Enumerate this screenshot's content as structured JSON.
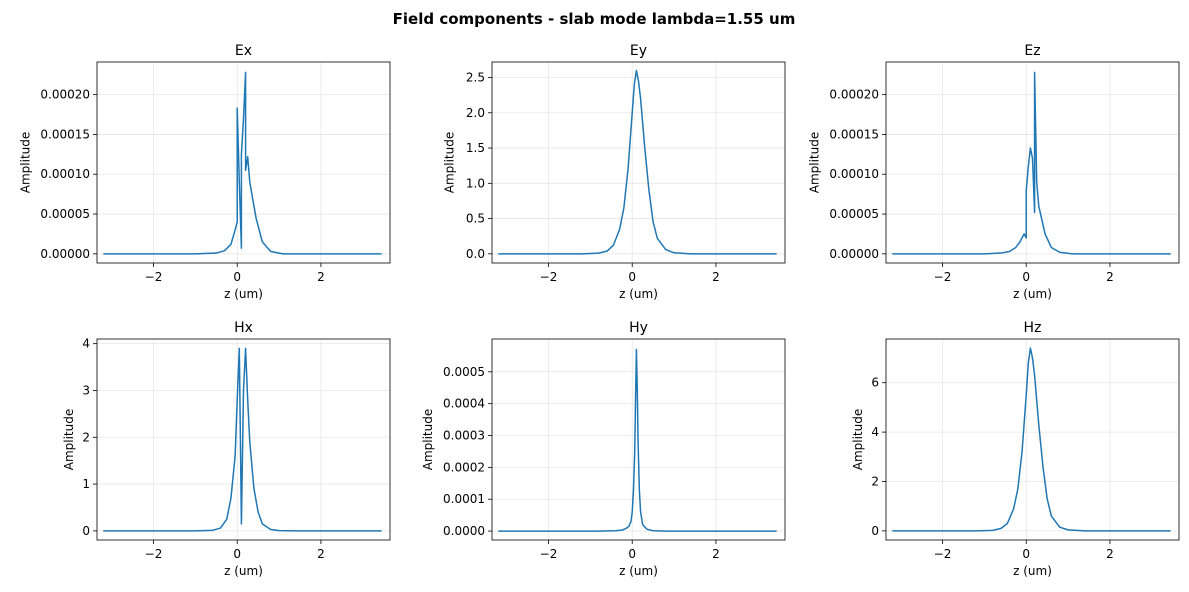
{
  "figure": {
    "title": "Field components - slab mode  lambda=1.55 um"
  },
  "colors": {
    "series": "#1f77b4"
  },
  "chart_data": [
    {
      "type": "line",
      "title": "Ex",
      "xlabel": "z (um)",
      "ylabel": "Amplitude",
      "xlim": [
        -3.35,
        3.65
      ],
      "ylim": [
        -1.15e-05,
        0.000241
      ],
      "xticks": [
        {
          "v": -2,
          "label": "−2"
        },
        {
          "v": 0,
          "label": "0"
        },
        {
          "v": 2,
          "label": "2"
        }
      ],
      "yticks": [
        {
          "v": 0,
          "label": "0.00000"
        },
        {
          "v": 5e-05,
          "label": "0.00005"
        },
        {
          "v": 0.0001,
          "label": "0.00010"
        },
        {
          "v": 0.00015,
          "label": "0.00015"
        },
        {
          "v": 0.0002,
          "label": "0.00020"
        }
      ],
      "grid": true,
      "series": [
        {
          "x": [
            -3.2,
            -1.0,
            -0.5,
            -0.3,
            -0.15,
            -0.05,
            0.0,
            0.0,
            0.05,
            0.1,
            0.1,
            0.15,
            0.2,
            0.2,
            0.25,
            0.3,
            0.45,
            0.6,
            0.8,
            1.1,
            3.45
          ],
          "y": [
            0,
            0,
            1e-06,
            4e-06,
            1.2e-05,
            3e-05,
            4e-05,
            0.000183,
            9e-05,
            7e-06,
            0.000125,
            0.00017,
            0.000228,
            0.000105,
            0.000122,
            9e-05,
            4.5e-05,
            1.5e-05,
            3e-06,
            0,
            0
          ]
        }
      ]
    },
    {
      "type": "line",
      "title": "Ey",
      "xlabel": "z (um)",
      "ylabel": "Amplitude",
      "xlim": [
        -3.35,
        3.65
      ],
      "ylim": [
        -0.13,
        2.72
      ],
      "xticks": [
        {
          "v": -2,
          "label": "−2"
        },
        {
          "v": 0,
          "label": "0"
        },
        {
          "v": 2,
          "label": "2"
        }
      ],
      "yticks": [
        {
          "v": 0,
          "label": "0.0"
        },
        {
          "v": 0.5,
          "label": "0.5"
        },
        {
          "v": 1.0,
          "label": "1.0"
        },
        {
          "v": 1.5,
          "label": "1.5"
        },
        {
          "v": 2.0,
          "label": "2.0"
        },
        {
          "v": 2.5,
          "label": "2.5"
        }
      ],
      "grid": true,
      "series": [
        {
          "x": [
            -3.2,
            -1.2,
            -0.8,
            -0.6,
            -0.45,
            -0.3,
            -0.2,
            -0.1,
            0.0,
            0.05,
            0.1,
            0.15,
            0.2,
            0.3,
            0.4,
            0.5,
            0.6,
            0.8,
            1.0,
            1.4,
            3.45
          ],
          "y": [
            0,
            0,
            0.01,
            0.04,
            0.12,
            0.35,
            0.65,
            1.2,
            2.0,
            2.4,
            2.6,
            2.45,
            2.2,
            1.5,
            0.9,
            0.45,
            0.22,
            0.06,
            0.015,
            0,
            0
          ]
        }
      ]
    },
    {
      "type": "line",
      "title": "Ez",
      "xlabel": "z (um)",
      "ylabel": "Amplitude",
      "xlim": [
        -3.35,
        3.65
      ],
      "ylim": [
        -1.15e-05,
        0.000241
      ],
      "xticks": [
        {
          "v": -2,
          "label": "−2"
        },
        {
          "v": 0,
          "label": "0"
        },
        {
          "v": 2,
          "label": "2"
        }
      ],
      "yticks": [
        {
          "v": 0,
          "label": "0.00000"
        },
        {
          "v": 5e-05,
          "label": "0.00005"
        },
        {
          "v": 0.0001,
          "label": "0.00010"
        },
        {
          "v": 0.00015,
          "label": "0.00015"
        },
        {
          "v": 0.0002,
          "label": "0.00020"
        }
      ],
      "grid": true,
      "series": [
        {
          "x": [
            -3.2,
            -1.0,
            -0.6,
            -0.4,
            -0.25,
            -0.15,
            -0.05,
            0.0,
            0.0,
            0.05,
            0.1,
            0.15,
            0.2,
            0.2,
            0.25,
            0.3,
            0.45,
            0.6,
            0.8,
            1.1,
            3.45
          ],
          "y": [
            0,
            0,
            1e-06,
            3e-06,
            8e-06,
            1.5e-05,
            2.5e-05,
            2e-05,
            7.9e-05,
            0.00011,
            0.000133,
            0.00012,
            5.2e-05,
            0.000228,
            9e-05,
            6e-05,
            2.5e-05,
            8e-06,
            2e-06,
            0,
            0
          ]
        }
      ]
    },
    {
      "type": "line",
      "title": "Hx",
      "xlabel": "z (um)",
      "ylabel": "Amplitude",
      "xlim": [
        -3.35,
        3.65
      ],
      "ylim": [
        -0.195,
        4.1
      ],
      "xticks": [
        {
          "v": -2,
          "label": "−2"
        },
        {
          "v": 0,
          "label": "0"
        },
        {
          "v": 2,
          "label": "2"
        }
      ],
      "yticks": [
        {
          "v": 0,
          "label": "0"
        },
        {
          "v": 1,
          "label": "1"
        },
        {
          "v": 2,
          "label": "2"
        },
        {
          "v": 3,
          "label": "3"
        },
        {
          "v": 4,
          "label": "4"
        }
      ],
      "grid": true,
      "series": [
        {
          "x": [
            -3.2,
            -1.0,
            -0.6,
            -0.4,
            -0.25,
            -0.15,
            -0.05,
            0.0,
            0.05,
            0.1,
            0.15,
            0.2,
            0.25,
            0.3,
            0.4,
            0.5,
            0.6,
            0.8,
            1.0,
            1.4,
            3.45
          ],
          "y": [
            0,
            0,
            0.01,
            0.06,
            0.25,
            0.7,
            1.6,
            2.8,
            3.9,
            0.15,
            3.0,
            3.9,
            2.8,
            1.9,
            0.9,
            0.4,
            0.15,
            0.03,
            0.005,
            0,
            0
          ]
        }
      ]
    },
    {
      "type": "line",
      "title": "Hy",
      "xlabel": "z (um)",
      "ylabel": "Amplitude",
      "xlim": [
        -3.35,
        3.65
      ],
      "ylim": [
        -2.8e-05,
        0.000603
      ],
      "xticks": [
        {
          "v": -2,
          "label": "−2"
        },
        {
          "v": 0,
          "label": "0"
        },
        {
          "v": 2,
          "label": "2"
        }
      ],
      "yticks": [
        {
          "v": 0,
          "label": "0.0000"
        },
        {
          "v": 0.0001,
          "label": "0.0001"
        },
        {
          "v": 0.0002,
          "label": "0.0002"
        },
        {
          "v": 0.0003,
          "label": "0.0003"
        },
        {
          "v": 0.0004,
          "label": "0.0004"
        },
        {
          "v": 0.0005,
          "label": "0.0005"
        }
      ],
      "grid": true,
      "series": [
        {
          "x": [
            -3.2,
            -0.8,
            -0.4,
            -0.25,
            -0.15,
            -0.08,
            -0.03,
            0.0,
            0.03,
            0.06,
            0.08,
            0.1,
            0.12,
            0.14,
            0.17,
            0.2,
            0.25,
            0.35,
            0.5,
            0.8,
            3.45
          ],
          "y": [
            0,
            0,
            1e-06,
            3e-06,
            8e-06,
            1.5e-05,
            3e-05,
            6e-05,
            0.00013,
            0.00025,
            0.00042,
            0.00057,
            0.00045,
            0.00028,
            0.00013,
            6e-05,
            2e-05,
            6e-06,
            1e-06,
            0,
            0
          ]
        }
      ]
    },
    {
      "type": "line",
      "title": "Hz",
      "xlabel": "z (um)",
      "ylabel": "Amplitude",
      "xlim": [
        -3.35,
        3.65
      ],
      "ylim": [
        -0.37,
        7.77
      ],
      "xticks": [
        {
          "v": -2,
          "label": "−2"
        },
        {
          "v": 0,
          "label": "0"
        },
        {
          "v": 2,
          "label": "2"
        }
      ],
      "yticks": [
        {
          "v": 0,
          "label": "0"
        },
        {
          "v": 2,
          "label": "2"
        },
        {
          "v": 4,
          "label": "4"
        },
        {
          "v": 6,
          "label": "6"
        }
      ],
      "grid": true,
      "series": [
        {
          "x": [
            -3.2,
            -1.2,
            -0.8,
            -0.6,
            -0.45,
            -0.3,
            -0.2,
            -0.1,
            0.0,
            0.05,
            0.1,
            0.15,
            0.2,
            0.3,
            0.4,
            0.5,
            0.6,
            0.8,
            1.0,
            1.4,
            3.45
          ],
          "y": [
            0,
            0,
            0.02,
            0.1,
            0.3,
            0.9,
            1.7,
            3.2,
            5.5,
            6.8,
            7.4,
            7.0,
            6.3,
            4.3,
            2.6,
            1.3,
            0.6,
            0.15,
            0.04,
            0,
            0
          ]
        }
      ]
    }
  ]
}
